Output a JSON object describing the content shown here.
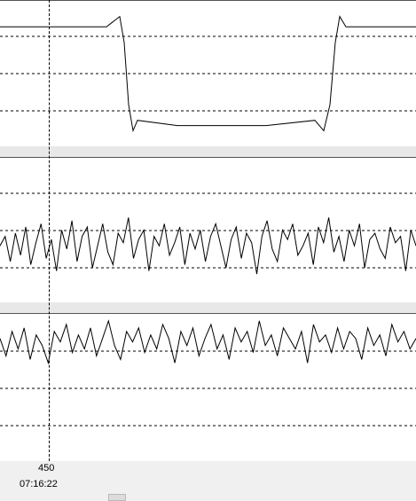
{
  "cursor": {
    "sample": "450",
    "time": "07:16:22"
  },
  "colors": {
    "trace": "#000000",
    "grid": "#000000",
    "panel_bg": "#ffffff",
    "background": "#f0f0f0"
  },
  "icons": {
    "scrollbar": "scroll-thumb"
  },
  "chart_data": [
    {
      "type": "line",
      "title": "",
      "xlabel": "",
      "ylabel": "",
      "description_of_shape": "square pulse",
      "x": [
        0,
        60,
        120,
        135,
        140,
        145,
        150,
        155,
        200,
        300,
        355,
        365,
        372,
        378,
        383,
        390,
        430,
        469
      ],
      "values": [
        0.85,
        0.85,
        0.85,
        0.95,
        0.7,
        0.1,
        -0.15,
        -0.05,
        -0.1,
        -0.1,
        -0.05,
        -0.15,
        0.1,
        0.7,
        0.95,
        0.85,
        0.85,
        0.85
      ],
      "ylim": [
        -0.3,
        1.1
      ],
      "grid": true
    },
    {
      "type": "line",
      "title": "",
      "xlabel": "",
      "ylabel": "",
      "description_of_shape": "noise",
      "values": [
        0.2,
        0.5,
        -0.3,
        0.6,
        -0.1,
        0.8,
        -0.4,
        0.3,
        0.9,
        -0.2,
        0.4,
        -0.6,
        0.7,
        0.1,
        1.0,
        -0.3,
        0.5,
        0.8,
        -0.5,
        0.2,
        0.9,
        0.0,
        -0.4,
        0.6,
        0.3,
        1.1,
        -0.2,
        0.4,
        0.7,
        -0.6,
        0.5,
        0.2,
        0.9,
        -0.1,
        0.3,
        0.8,
        -0.4,
        0.6,
        0.1,
        0.7,
        -0.3,
        0.5,
        0.9,
        0.2,
        -0.5,
        0.4,
        0.8,
        -0.2,
        0.6,
        0.3,
        -0.7,
        0.5,
        1.0,
        0.1,
        -0.3,
        0.7,
        0.4,
        0.9,
        -0.1,
        0.2,
        0.6,
        -0.4,
        0.8,
        0.3,
        1.1,
        0.0,
        0.5,
        -0.3,
        0.7,
        0.2,
        0.9,
        -0.5,
        0.4,
        0.6,
        0.1,
        -0.2,
        0.8,
        0.3,
        0.5,
        -0.6,
        0.7,
        0.2
      ],
      "ylim": [
        -1.6,
        3.0
      ],
      "grid": true
    },
    {
      "type": "line",
      "title": "",
      "xlabel": "",
      "ylabel": "",
      "description_of_shape": "noise",
      "values": [
        0.3,
        -0.2,
        0.5,
        0.0,
        0.6,
        -0.3,
        0.4,
        0.1,
        -0.4,
        0.5,
        0.2,
        0.7,
        -0.1,
        0.4,
        0.0,
        0.6,
        -0.2,
        0.3,
        0.8,
        0.1,
        -0.3,
        0.5,
        0.2,
        0.6,
        -0.1,
        0.4,
        0.0,
        0.7,
        0.3,
        -0.4,
        0.5,
        0.1,
        0.6,
        -0.2,
        0.3,
        0.7,
        0.0,
        0.4,
        -0.3,
        0.6,
        0.2,
        0.5,
        -0.1,
        0.8,
        0.1,
        0.4,
        -0.2,
        0.6,
        0.3,
        0.0,
        0.5,
        -0.4,
        0.7,
        0.2,
        0.4,
        -0.1,
        0.6,
        0.0,
        0.5,
        0.3,
        -0.3,
        0.6,
        0.1,
        0.4,
        -0.2,
        0.7,
        0.2,
        0.5,
        0.0,
        0.3
      ],
      "ylim": [
        -3.2,
        1.0
      ],
      "grid": true
    }
  ]
}
